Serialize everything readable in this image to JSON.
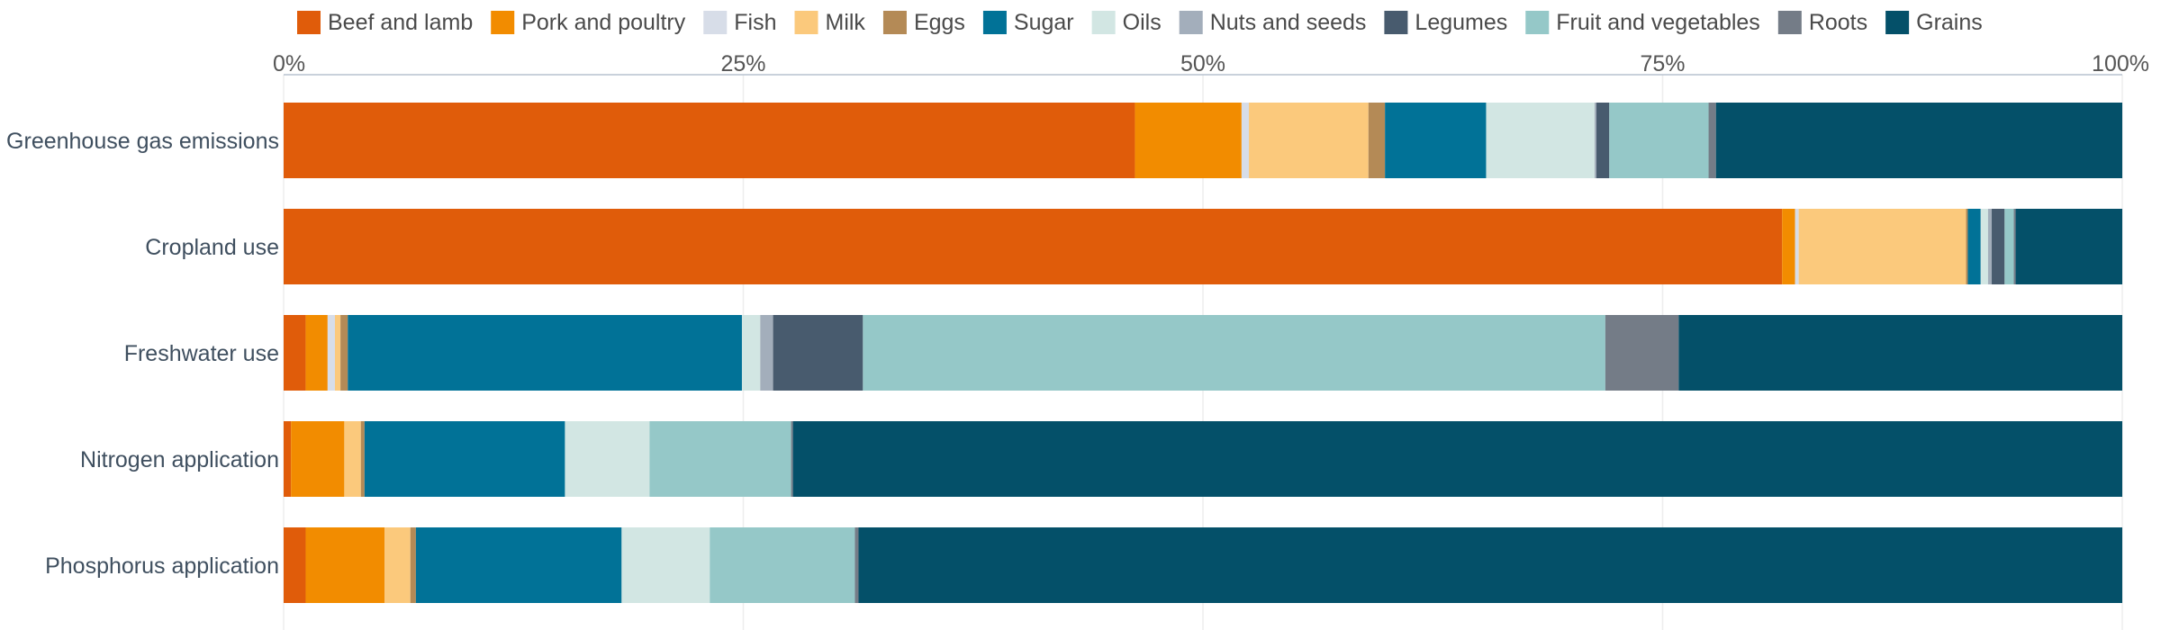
{
  "chart_data": {
    "type": "bar",
    "orientation": "horizontal",
    "stacked": true,
    "normalized": true,
    "title": "",
    "xlabel": "",
    "ylabel": "",
    "xlim": [
      0,
      100
    ],
    "ticks": [
      "0%",
      "25%",
      "50%",
      "75%",
      "100%"
    ],
    "tick_values": [
      0,
      25,
      50,
      75,
      100
    ],
    "grid": true,
    "legend_position": "top",
    "categories": [
      "Greenhouse gas emissions",
      "Cropland use",
      "Freshwater use",
      "Nitrogen application",
      "Phosphorus application"
    ],
    "series": [
      {
        "name": "Beef and lamb",
        "color": "#e05c0a",
        "values": [
          46.3,
          81.5,
          1.2,
          0.4,
          1.2
        ]
      },
      {
        "name": "Pork and poultry",
        "color": "#f28c00",
        "values": [
          5.8,
          0.7,
          1.2,
          2.9,
          4.3
        ]
      },
      {
        "name": "Fish",
        "color": "#d7dde8",
        "values": [
          0.4,
          0.2,
          0.4,
          0.0,
          0.0
        ]
      },
      {
        "name": "Milk",
        "color": "#fbc97c",
        "values": [
          6.5,
          9.1,
          0.3,
          0.9,
          1.4
        ]
      },
      {
        "name": "Eggs",
        "color": "#b48a56",
        "values": [
          0.9,
          0.1,
          0.4,
          0.2,
          0.3
        ]
      },
      {
        "name": "Sugar",
        "color": "#017297",
        "values": [
          5.5,
          0.7,
          21.5,
          10.9,
          11.2
        ]
      },
      {
        "name": "Oils",
        "color": "#d2e6e3",
        "values": [
          5.9,
          0.4,
          1.0,
          4.6,
          4.8
        ]
      },
      {
        "name": "Nuts and seeds",
        "color": "#a3aebb",
        "values": [
          0.1,
          0.2,
          0.7,
          0.0,
          0.0
        ]
      },
      {
        "name": "Legumes",
        "color": "#485b6e",
        "values": [
          0.7,
          0.7,
          4.9,
          0.0,
          0.0
        ]
      },
      {
        "name": "Fruit and vegetables",
        "color": "#95c8c8",
        "values": [
          5.4,
          0.5,
          40.5,
          7.7,
          7.9
        ]
      },
      {
        "name": "Roots",
        "color": "#747c87",
        "values": [
          0.4,
          0.1,
          4.0,
          0.1,
          0.2
        ]
      },
      {
        "name": "Grains",
        "color": "#045069",
        "values": [
          22.1,
          5.8,
          24.2,
          72.3,
          68.8
        ]
      }
    ]
  }
}
